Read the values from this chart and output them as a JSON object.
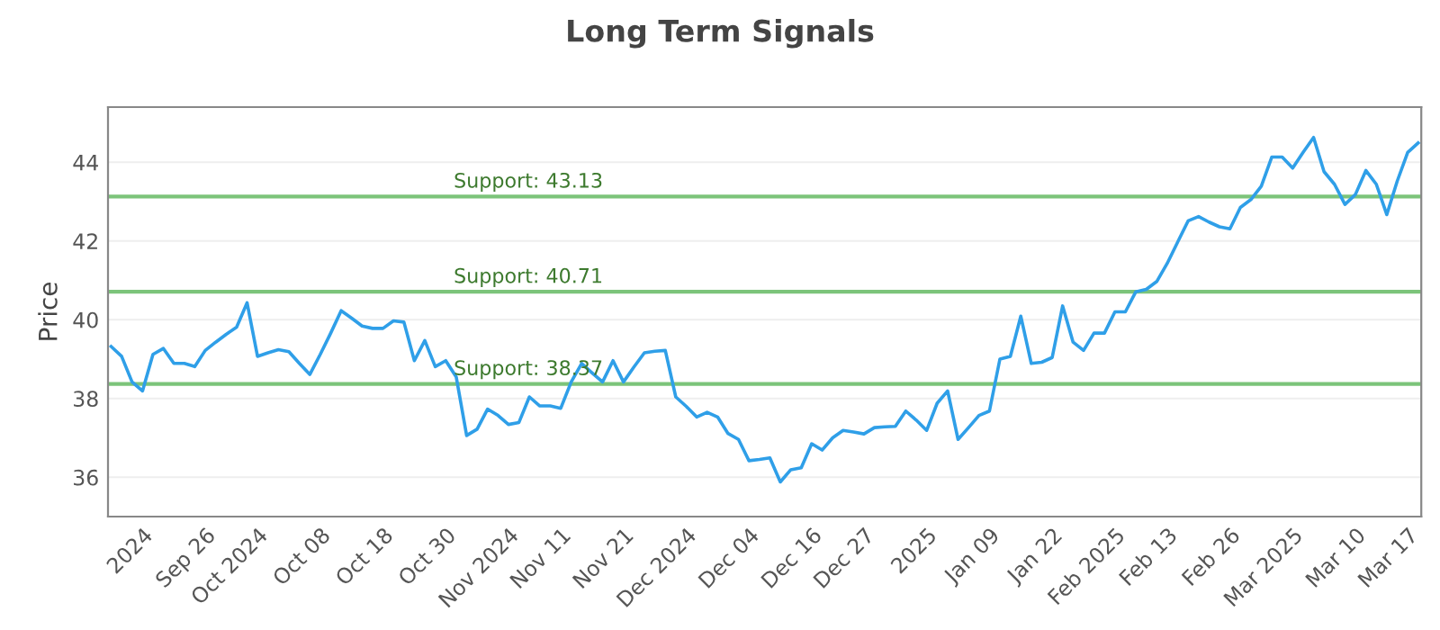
{
  "chart_data": {
    "type": "line",
    "title": "Long Term Signals",
    "ylabel": "Price",
    "categories": [
      null,
      null,
      null,
      "2024",
      null,
      null,
      null,
      null,
      null,
      "Sep 26",
      null,
      null,
      null,
      null,
      "Oct 2024",
      null,
      null,
      null,
      null,
      null,
      "Oct 08",
      null,
      null,
      null,
      null,
      null,
      "Oct 18",
      null,
      null,
      null,
      null,
      null,
      "Oct 30",
      null,
      null,
      null,
      null,
      null,
      "Nov 2024",
      null,
      null,
      null,
      null,
      "Nov 11",
      null,
      null,
      null,
      null,
      null,
      "Nov 21",
      null,
      null,
      null,
      null,
      null,
      "Dec 2024",
      null,
      null,
      null,
      null,
      null,
      "Dec 04",
      null,
      null,
      null,
      null,
      null,
      "Dec 16",
      null,
      null,
      null,
      null,
      "Dec 27",
      null,
      null,
      null,
      null,
      null,
      "2025",
      null,
      null,
      null,
      null,
      null,
      "Jan 09",
      null,
      null,
      null,
      null,
      null,
      "Jan 22",
      null,
      null,
      null,
      null,
      null,
      "Feb 2025",
      null,
      null,
      null,
      null,
      "Feb 13",
      null,
      null,
      null,
      null,
      null,
      "Feb 26",
      null,
      null,
      null,
      null,
      null,
      "Mar 2025",
      null,
      null,
      null,
      null,
      null,
      "Mar 10",
      null,
      null,
      null,
      null,
      "Mar 17",
      null
    ],
    "series": [
      {
        "color": "#2f9fe8",
        "values": [
          39.32,
          39.07,
          38.42,
          38.19,
          39.12,
          39.27,
          38.89,
          38.89,
          38.81,
          39.22,
          39.43,
          39.63,
          39.81,
          40.43,
          39.07,
          39.16,
          39.24,
          39.19,
          38.89,
          38.61,
          39.12,
          39.66,
          40.23,
          40.04,
          39.84,
          39.78,
          39.78,
          39.97,
          39.94,
          38.96,
          39.47,
          38.81,
          38.96,
          38.55,
          37.06,
          37.22,
          37.73,
          37.57,
          37.34,
          37.39,
          38.04,
          37.81,
          37.81,
          37.75,
          38.42,
          38.89,
          38.65,
          38.42,
          38.96,
          38.42,
          38.8,
          39.16,
          39.2,
          39.22,
          38.04,
          37.8,
          37.53,
          37.65,
          37.53,
          37.11,
          36.96,
          36.42,
          36.45,
          36.49,
          35.88,
          36.19,
          36.24,
          36.85,
          36.69,
          37.0,
          37.19,
          37.15,
          37.1,
          37.26,
          37.28,
          37.29,
          37.68,
          37.45,
          37.19,
          37.88,
          38.19,
          36.96,
          37.26,
          37.57,
          37.68,
          39.0,
          39.07,
          40.09,
          38.89,
          38.92,
          39.04,
          40.35,
          39.43,
          39.22,
          39.66,
          39.66,
          40.2,
          40.2,
          40.71,
          40.77,
          40.97,
          41.43,
          41.97,
          42.51,
          42.62,
          42.48,
          42.36,
          42.31,
          42.85,
          43.05,
          43.39,
          44.13,
          44.13,
          43.85,
          44.25,
          44.63,
          43.76,
          43.44,
          42.93,
          43.18,
          43.79,
          43.44,
          42.67,
          43.52,
          44.25,
          44.49
        ]
      }
    ],
    "ylim": [
      35,
      45.4
    ],
    "yticks": [
      36,
      38,
      40,
      42,
      44
    ],
    "grid": "y",
    "legend": false,
    "marker": "none",
    "line_style": "solid",
    "ref_lines": [
      {
        "axis": "y",
        "value": 43.13,
        "label": "Support: 43.13",
        "color": "#7cc47a"
      },
      {
        "axis": "y",
        "value": 40.71,
        "label": "Support: 40.71",
        "color": "#7cc47a"
      },
      {
        "axis": "y",
        "value": 38.37,
        "label": "Support: 38.37",
        "color": "#7cc47a"
      }
    ]
  }
}
